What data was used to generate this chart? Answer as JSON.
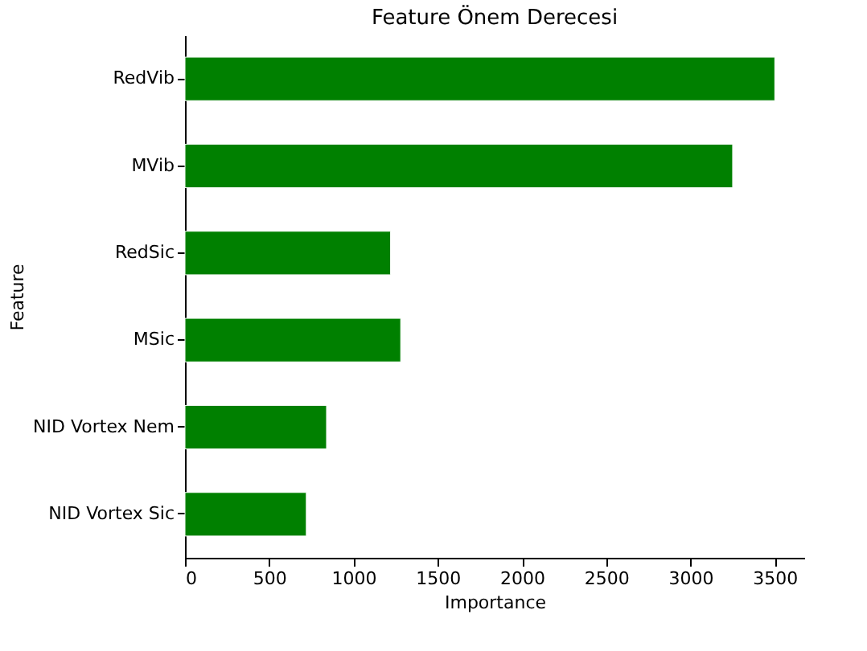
{
  "chart_data": {
    "type": "bar",
    "orientation": "horizontal",
    "title": "Feature Önem Derecesi",
    "xlabel": "Importance",
    "ylabel": "Feature",
    "categories": [
      "RedVib",
      "MVib",
      "RedSic",
      "MSic",
      "NID Vortex Nem",
      "NID Vortex Sic"
    ],
    "values": [
      3500,
      3250,
      1220,
      1280,
      840,
      720
    ],
    "color": "#008000",
    "xlim": [
      0,
      3675
    ],
    "xticks": [
      0,
      500,
      1000,
      1500,
      2000,
      2500,
      3000,
      3500
    ],
    "grid": false
  }
}
